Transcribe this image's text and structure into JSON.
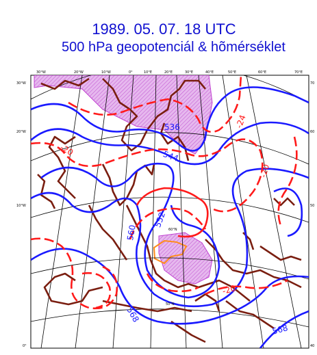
{
  "title": {
    "date": "1989. 05. 07. 18 UTC",
    "main": "500 hPa geopotenciál & hõmérséklet"
  },
  "top_ticks": [
    "30°W",
    "20°W",
    "10°W",
    "0°",
    "10°E",
    "20°E",
    "30°E",
    "40°E",
    "50°E",
    "60°E",
    "70°E"
  ],
  "left_ticks": [
    "30°W",
    "20°W",
    "10°W",
    "0°"
  ],
  "right_ticks": [
    "70",
    "60",
    "50",
    "40"
  ],
  "inner_ticks": [
    "60°N",
    "50°N"
  ],
  "geopotential_labels": [
    "536",
    "544",
    "552",
    "560",
    "568",
    "568"
  ],
  "temperature_labels": [
    "-24",
    "-20",
    "-20",
    "-20"
  ],
  "colors": {
    "title": "#1010d0",
    "geopotential": "#1a1aff",
    "temperature": "#ff1a1a",
    "coastline": "#7a1e10",
    "cold_area": "#d080e0",
    "cold_core": "#ff8c1a"
  }
}
